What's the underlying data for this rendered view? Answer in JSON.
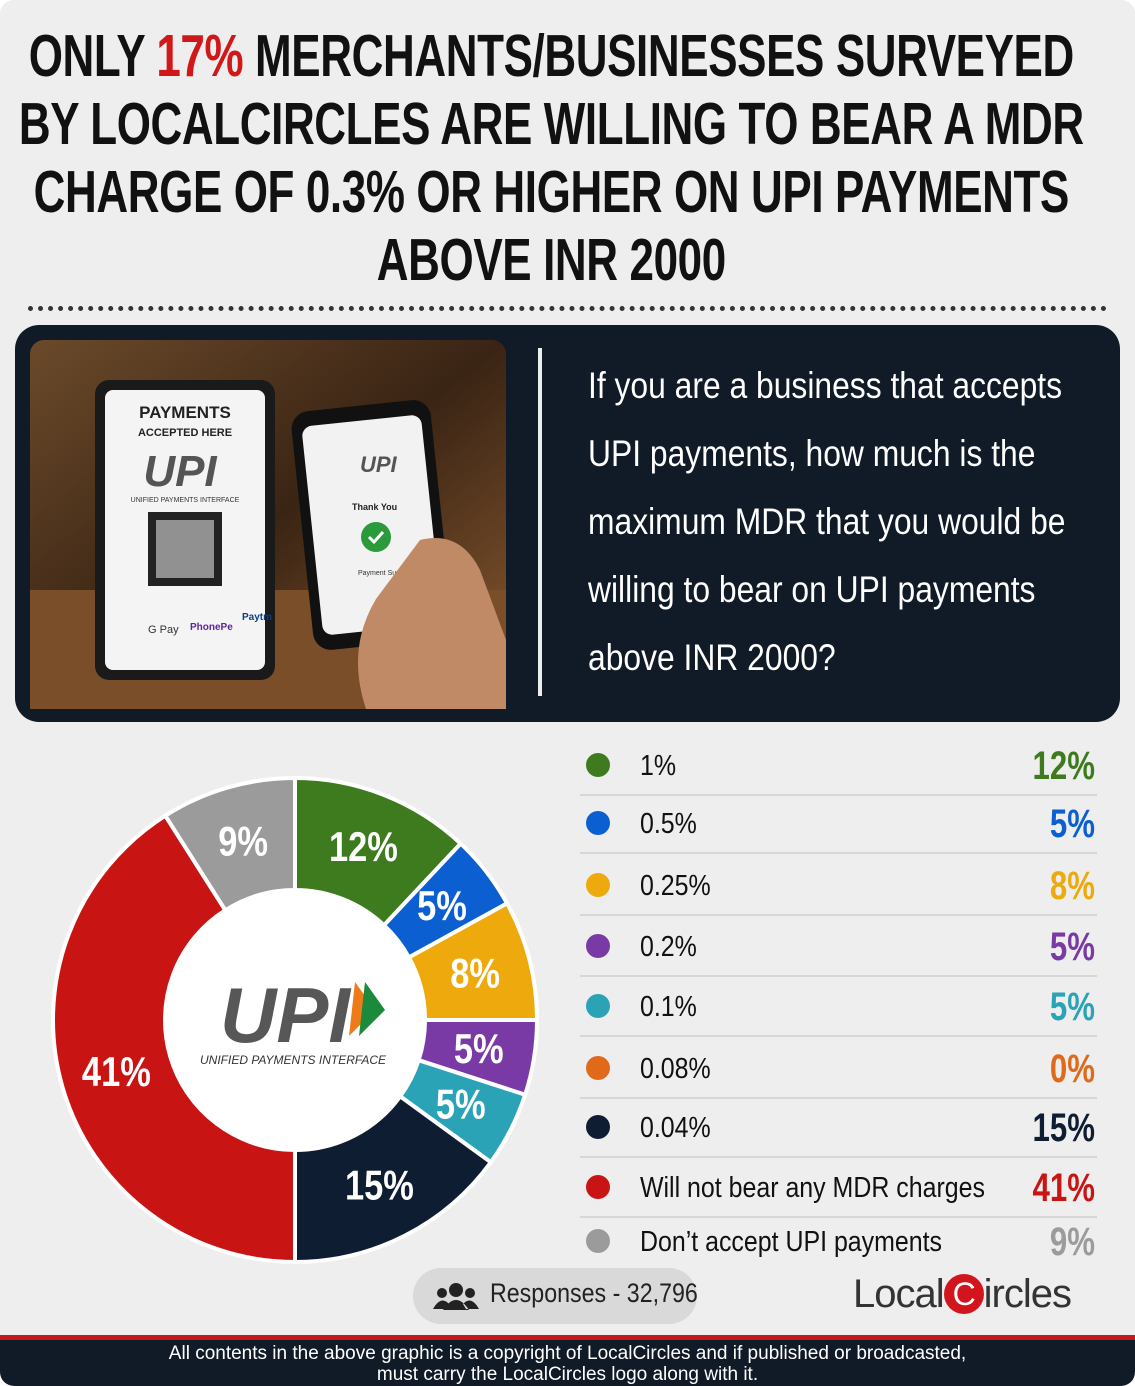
{
  "header": {
    "title_parts": [
      "ONLY ",
      "17%",
      " MERCHANTS/BUSINESSES SURVEYED BY LOCALCIRCLES ARE WILLING TO BEAR A MDR CHARGE OF 0.3% OR HIGHER ON UPI PAYMENTS ABOVE INR 2000"
    ]
  },
  "question": "If you are a business that accepts UPI payments, how much is the maximum MDR that you would be willing to bear on UPI payments above INR 2000?",
  "photo": {
    "sign_title": "PAYMENTS",
    "sign_subtitle": "ACCEPTED HERE",
    "sign_logo": "UPI",
    "sign_logo_caption": "UNIFIED PAYMENTS INTERFACE",
    "apps": [
      "G Pay",
      "PhonePe",
      "Paytm"
    ],
    "phone_logo": "UPI",
    "phone_thanks": "Thank You",
    "phone_status": "Payment Successful"
  },
  "chart_data": {
    "type": "donut",
    "center_logo": "UPI",
    "center_caption": "UNIFIED PAYMENTS INTERFACE",
    "categories": [
      "1%",
      "0.5%",
      "0.25%",
      "0.2%",
      "0.1%",
      "0.08%",
      "0.04%",
      "Will not bear any MDR charges",
      "Don’t accept UPI payments"
    ],
    "values": [
      12,
      5,
      8,
      5,
      5,
      0,
      15,
      41,
      9
    ],
    "value_labels": [
      "12%",
      "5%",
      "8%",
      "5%",
      "5%",
      "0%",
      "15%",
      "41%",
      "9%"
    ],
    "colors": [
      "#3e7b1e",
      "#0b5fd1",
      "#eeaa0c",
      "#7a3aa6",
      "#2ba3b6",
      "#e0691a",
      "#0f1d32",
      "#c91414",
      "#9b9b9b"
    ]
  },
  "responses": "Responses - 32,796",
  "logo": {
    "left": "Local",
    "mark": "C",
    "right": "ircles"
  },
  "footer": [
    "All contents in the above graphic is a copyright of LocalCircles and if published or broadcasted,",
    "must carry the LocalCircles logo along with it."
  ]
}
